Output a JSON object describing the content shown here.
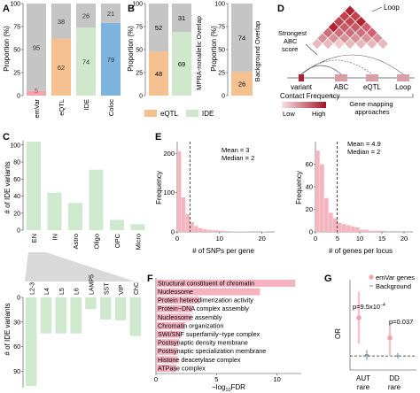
{
  "panel_labels": [
    "A",
    "B",
    "C",
    "D",
    "E",
    "F",
    "G"
  ],
  "colors": {
    "grey": "#c5c5c5",
    "pink": "#f4a3ad",
    "orange": "#f5c190",
    "green": "#cfe8cc",
    "blue": "#7db4de",
    "bar_green": "#cfe9cf",
    "hist_pink": "#f3b6bf",
    "go_pink": "#f5b3bf",
    "dark_red": "#b22331",
    "dark_pink": "#d38a94"
  },
  "panel_a": {
    "ylabel": "Proportion (%)",
    "yticks": [
      "0",
      "25",
      "50",
      "75",
      "100"
    ],
    "chart_data": {
      "type": "bar",
      "stacked": true,
      "categories": [
        "emVar",
        "eQTL",
        "IDE",
        "Coloc"
      ],
      "series": [
        {
          "values": [
            5,
            62,
            74,
            79
          ]
        },
        {
          "values": [
            95,
            38,
            26,
            21
          ]
        }
      ],
      "ylim": [
        0,
        100
      ]
    }
  },
  "panel_b": {
    "left_ylabel": "Proportion (%)",
    "right_ylabel": "Proportion (%)",
    "left_xlabel": "MPRA-nonallelic Overlap",
    "right_xlabel": "Background Overlap",
    "yticks": [
      "0",
      "25",
      "50",
      "75",
      "100"
    ],
    "legend": [
      {
        "label": "eQTL",
        "color": "#f5c190"
      },
      {
        "label": "IDE",
        "color": "#cfe8cc"
      }
    ],
    "chart_data": [
      {
        "type": "bar",
        "stacked": true,
        "categories": [
          "eQTL",
          "IDE"
        ],
        "series": [
          {
            "values": [
              48,
              69
            ]
          },
          {
            "values": [
              52,
              31
            ]
          }
        ],
        "ylim": [
          0,
          100
        ]
      },
      {
        "type": "bar",
        "stacked": true,
        "categories": [
          "Background"
        ],
        "series": [
          {
            "values": [
              26
            ]
          },
          {
            "values": [
              74
            ]
          }
        ],
        "ylim": [
          0,
          100
        ]
      }
    ]
  },
  "panel_c": {
    "ylabel": "# of IDE variants",
    "yticks": [
      "0",
      "20",
      "40",
      "60",
      "80",
      "100"
    ],
    "chart_data": {
      "type": "bar",
      "categories": [
        "EN",
        "IN",
        "Astro",
        "Oligo",
        "OPC",
        "Micro"
      ],
      "values": [
        104,
        44,
        32,
        71,
        12,
        7
      ],
      "ylim": [
        0,
        105
      ]
    },
    "sub_ylabel": "# of IDE variants",
    "sub_yticks": [
      "0",
      "30",
      "60",
      "90"
    ],
    "sub_chart_data": {
      "type": "bar",
      "categories": [
        "L2-3",
        "L4",
        "L5",
        "L6",
        "LAMP5",
        "SST",
        "VIP",
        "ChC"
      ],
      "values": [
        108,
        44,
        44,
        44,
        14,
        27,
        28,
        47
      ],
      "ylim": [
        0,
        108
      ],
      "inverted": true
    }
  },
  "panel_d": {
    "loop_label": "Loop",
    "strongest_label": "Strongest ABC score",
    "track_labels": [
      "variant",
      "ABC",
      "eQTL",
      "Loop"
    ],
    "contact_title": "Contact Frequency",
    "low_label": "Low",
    "high_label": "High",
    "gene_mapping_label": "Gene mapping approaches"
  },
  "panel_e": {
    "chart_data": [
      {
        "type": "histogram",
        "xlabel": "# of SNPs per gene",
        "ylabel": "Frequency",
        "xlim": [
          0,
          23
        ],
        "ylim": [
          0,
          230
        ],
        "bins": [
          0,
          1,
          2,
          3,
          4,
          5,
          6,
          7,
          8,
          9,
          10,
          11,
          12,
          13,
          14,
          15,
          16,
          17,
          18,
          19,
          20,
          21,
          22
        ],
        "counts": [
          205,
          88,
          45,
          25,
          15,
          10,
          7,
          5,
          4,
          4,
          3,
          2,
          2,
          1,
          1,
          1,
          1,
          0,
          0,
          0,
          1,
          0
        ],
        "mean": 3,
        "median": 2,
        "annotation": [
          "Mean = 3",
          "Median = 2"
        ],
        "xticks": [
          0,
          10,
          20
        ],
        "yticks": [
          0,
          100,
          200
        ]
      },
      {
        "type": "histogram",
        "xlabel": "# of genes per locus",
        "ylabel": "Frequency",
        "xlim": [
          0,
          22
        ],
        "ylim": [
          0,
          80
        ],
        "bins": [
          0,
          1,
          2,
          3,
          4,
          5,
          6,
          7,
          8,
          9,
          10,
          11,
          12,
          13,
          14,
          15,
          16,
          17,
          18,
          19,
          20,
          21
        ],
        "counts": [
          72,
          60,
          30,
          17,
          12,
          8,
          7,
          6,
          5,
          4,
          2,
          2,
          1,
          1,
          1,
          1,
          0,
          0,
          0,
          0,
          0
        ],
        "mean": 4.9,
        "median": 2,
        "annotation": [
          "Mean = 4.9",
          "Median = 2"
        ],
        "xticks": [
          0,
          5,
          10,
          15,
          20
        ],
        "yticks": [
          0,
          20,
          40,
          60
        ]
      }
    ]
  },
  "panel_f": {
    "xlabel_main": "−log",
    "xlabel_sub": "10",
    "xlabel_rest": "FDR",
    "chart_data": {
      "type": "bar",
      "orientation": "horizontal",
      "categories": [
        "Structural constituent of chromatin",
        "Nucleosome",
        "Protein heterodimerization activity",
        "Protein−DNA complex assembly",
        "Nucleosome assembly",
        "Chromatin organization",
        "SWI/SNF superfamily−type complex",
        "Postsynaptic density membrane",
        "Postsynaptic specialization membrane",
        "Histone deacetylase complex",
        "ATPase complex"
      ],
      "values": [
        11.5,
        8.6,
        3.6,
        3.0,
        2.9,
        2.4,
        2.1,
        1.9,
        1.8,
        1.8,
        1.7
      ],
      "xlim": [
        0,
        12
      ],
      "xticks": [
        0,
        5,
        10
      ]
    }
  },
  "panel_g": {
    "ylabel": "OR",
    "legend": [
      {
        "label": "emVar genes",
        "color": "#f4a3ad"
      },
      {
        "label": "Background",
        "color": "#8a9dae"
      }
    ],
    "p1_main": "p=9.5x10",
    "p1_exp": "−4",
    "p2": "p=0.037",
    "chart_data": {
      "type": "pointrange",
      "categories": [
        "AUT rare",
        "DD rare"
      ],
      "series": [
        {
          "name": "emVar genes",
          "values": [
            2.9,
            1.9
          ],
          "lower": [
            1.6,
            1.0
          ],
          "upper": [
            4.2,
            2.6
          ]
        },
        {
          "name": "Background",
          "values": [
            1.05,
            1.0
          ],
          "lower": [
            0.8,
            0.85
          ],
          "upper": [
            1.3,
            1.15
          ]
        }
      ],
      "reference_line": 1,
      "ylim": [
        0.3,
        4.8
      ]
    }
  }
}
